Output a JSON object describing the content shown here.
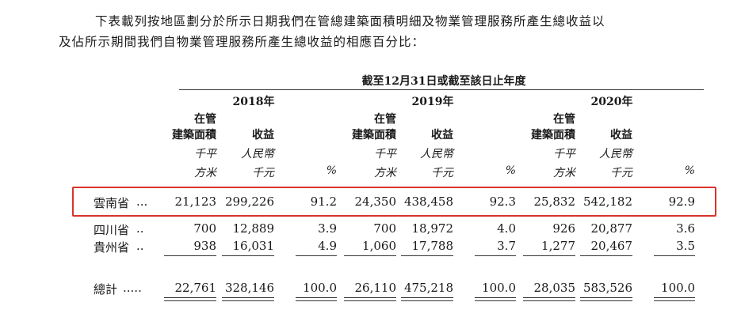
{
  "intro": {
    "line1": "下表載列按地區劃分於所示日期我們在管總建築面積明細及物業管理服務所產生總收益以",
    "line2": "及佔所示期間我們自物業管理服務所產生總收益的相應百分比："
  },
  "header": {
    "period": "截至12月31日或截至該日止年度",
    "years": [
      "2018年",
      "2019年",
      "2020年"
    ],
    "gfa_line1": "在管",
    "gfa_line2": "建築面積",
    "revenue": "收益",
    "unit_gfa_1": "千平",
    "unit_gfa_2": "方米",
    "unit_rev_1": "人民幣",
    "unit_rev_2": "千元",
    "unit_pct": "%"
  },
  "rows": [
    {
      "label": "雲南省",
      "dots": "...",
      "v": [
        "21,123",
        "299,226",
        "91.2",
        "24,350",
        "438,458",
        "92.3",
        "25,832",
        "542,182",
        "92.9"
      ]
    },
    {
      "label": "四川省",
      "dots": "..",
      "v": [
        "700",
        "12,889",
        "3.9",
        "700",
        "18,972",
        "4.0",
        "926",
        "20,877",
        "3.6"
      ]
    },
    {
      "label": "貴州省",
      "dots": "..",
      "v": [
        "938",
        "16,031",
        "4.9",
        "1,060",
        "17,788",
        "3.7",
        "1,277",
        "20,467",
        "3.5"
      ]
    }
  ],
  "total": {
    "label": "總計",
    "dots": ".....",
    "v": [
      "22,761",
      "328,146",
      "100.0",
      "26,110",
      "475,218",
      "100.0",
      "28,035",
      "583,526",
      "100.0"
    ]
  },
  "colors": {
    "highlight": "#d9342b"
  }
}
